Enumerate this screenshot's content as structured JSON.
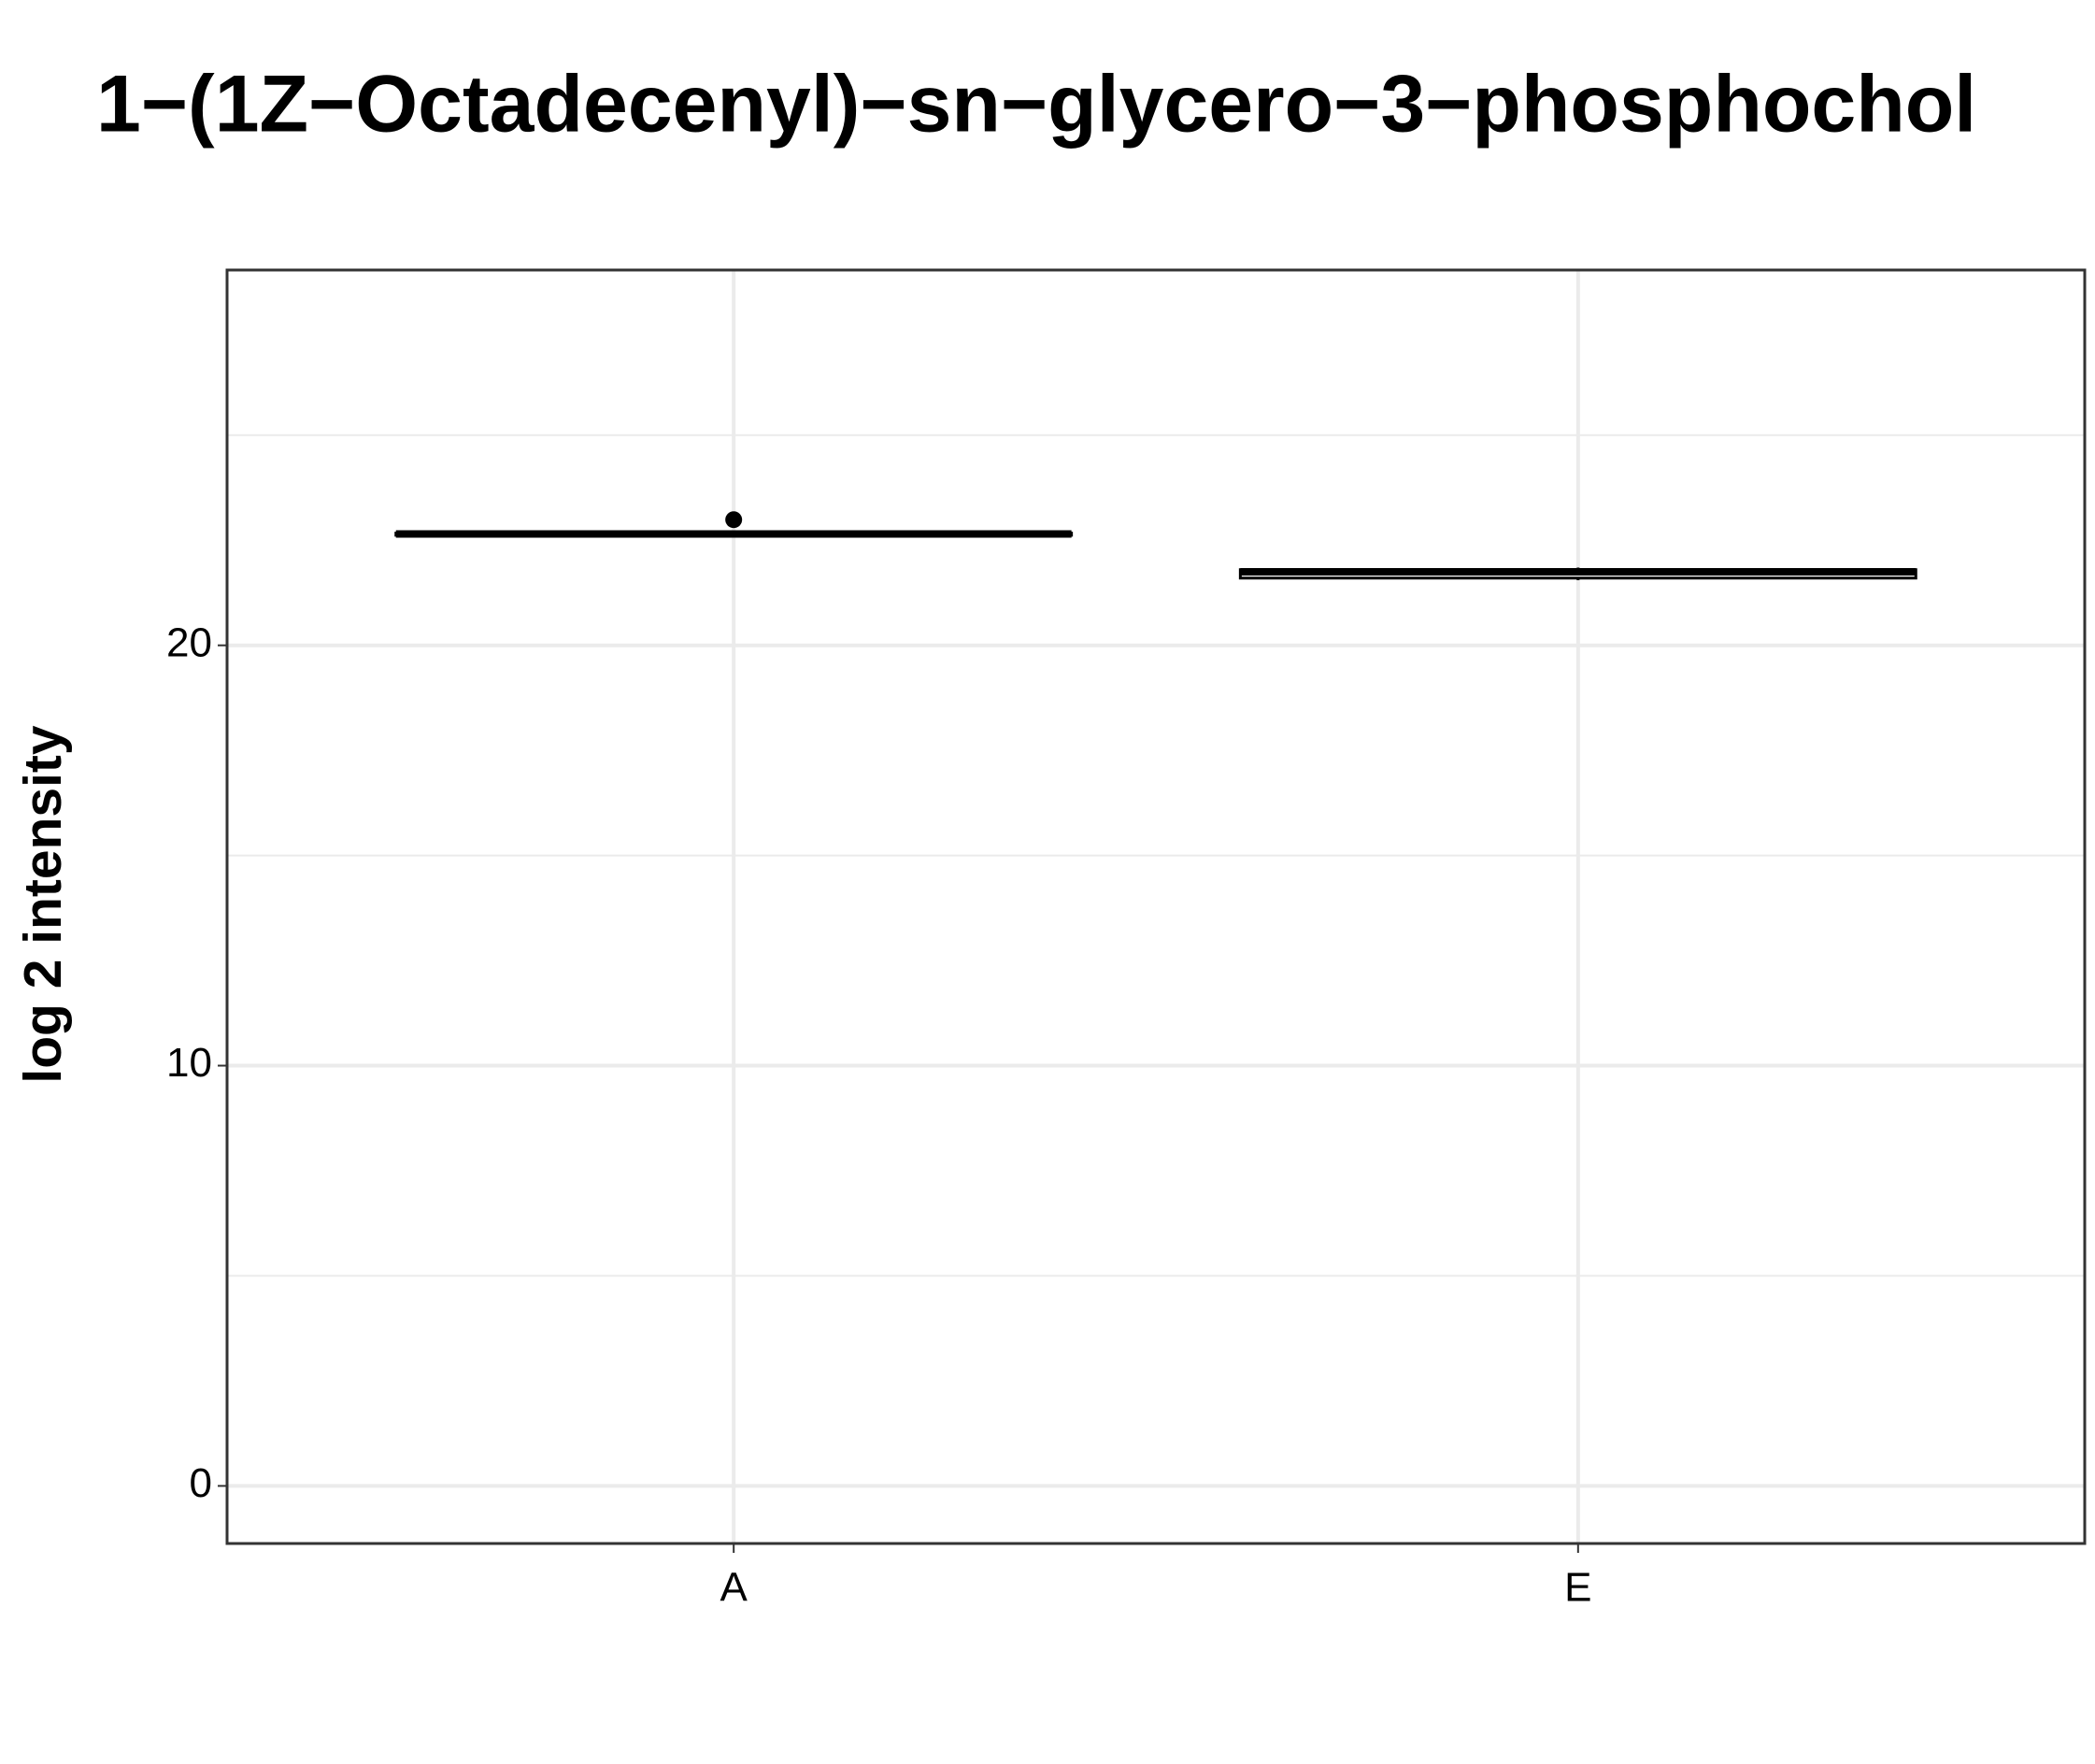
{
  "chart_data": {
    "type": "box",
    "title": "1−(1Z−Octadecenyl)−sn−glycero−3−phosphochol",
    "y_label": "log 2 intensity",
    "categories": [
      "A",
      "E"
    ],
    "boxes": [
      {
        "min": 22.6,
        "q1": 22.62,
        "median": 22.65,
        "q3": 22.67,
        "max": 22.7,
        "outliers": [
          22.99
        ]
      },
      {
        "min": 21.55,
        "q1": 21.6,
        "median": 21.75,
        "q3": 21.8,
        "max": 21.85,
        "outliers": []
      }
    ],
    "color": "#000000",
    "ylim": [
      -1.37,
      28.93
    ],
    "yticks": [
      0,
      10,
      20
    ],
    "grid": true
  }
}
